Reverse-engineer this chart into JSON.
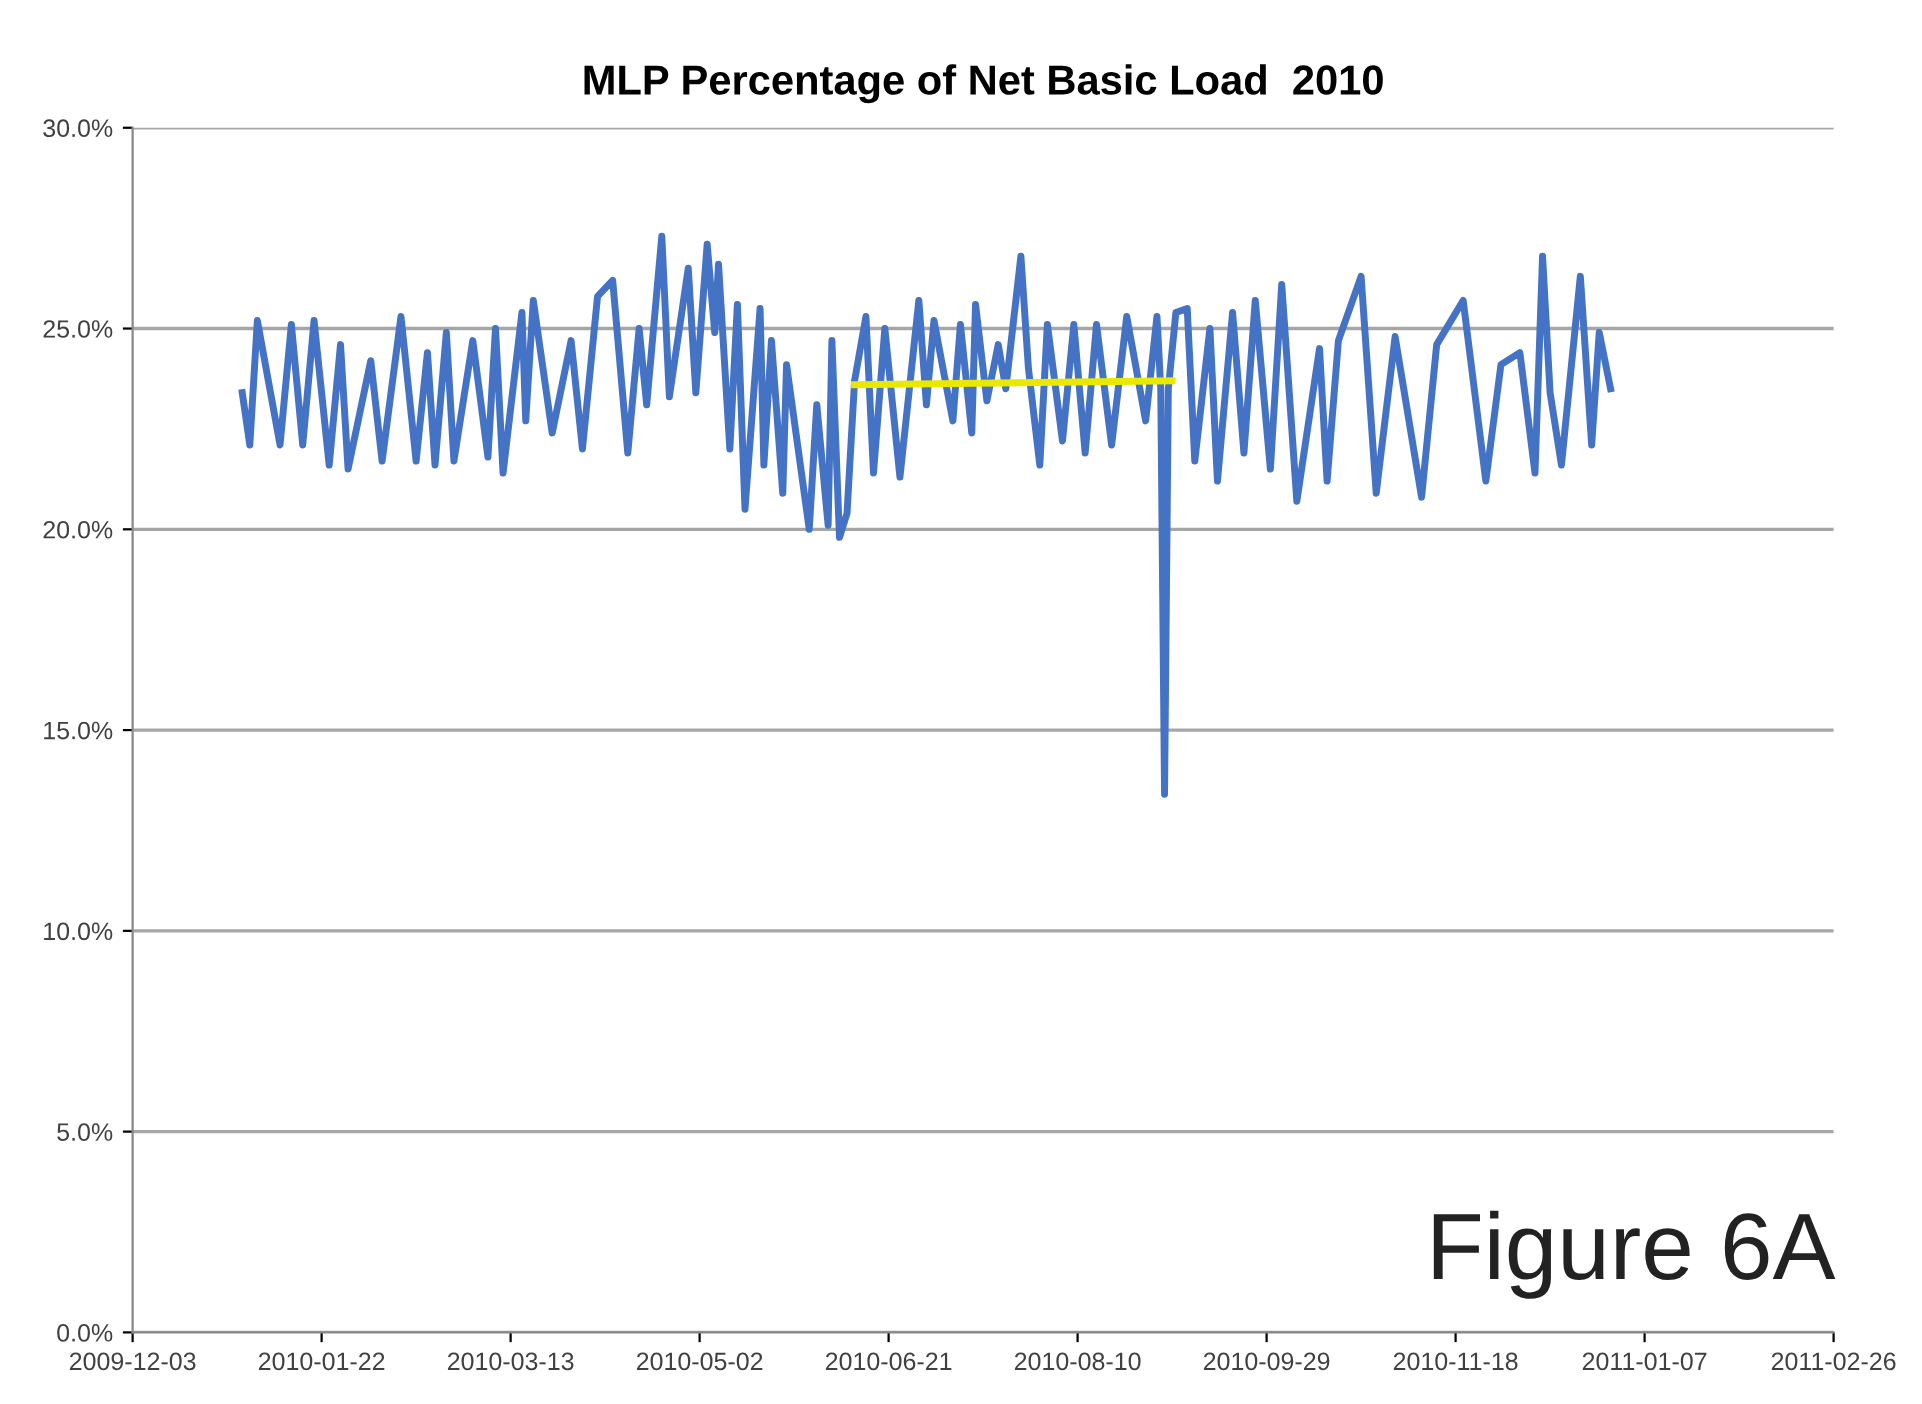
{
  "chart_data": {
    "type": "line",
    "title": "MLP Percentage of Net Basic Load  2010",
    "xlim": [
      "2009-12-03",
      "2011-02-26"
    ],
    "xticks": [
      "2009-12-03",
      "2010-01-22",
      "2010-03-13",
      "2010-05-02",
      "2010-06-21",
      "2010-08-10",
      "2010-09-29",
      "2010-11-18",
      "2011-01-07",
      "2011-02-26"
    ],
    "ylim": [
      0,
      30
    ],
    "yticks": [
      {
        "value": 0,
        "label": "0.0%"
      },
      {
        "value": 5,
        "label": "5.0%"
      },
      {
        "value": 10,
        "label": "10.0%"
      },
      {
        "value": 15,
        "label": "15.0%"
      },
      {
        "value": 20,
        "label": "20.0%"
      },
      {
        "value": 25,
        "label": "25.0%"
      },
      {
        "value": 30,
        "label": "30.0%"
      }
    ],
    "grid": "y",
    "marker": "none",
    "line_style": "solid",
    "annotations": [
      "Figure 6A"
    ],
    "series": [
      {
        "color": "#4472c4",
        "x": [
          "2010-01-01",
          "2010-01-03",
          "2010-01-05",
          "2010-01-11",
          "2010-01-14",
          "2010-01-17",
          "2010-01-20",
          "2010-01-24",
          "2010-01-27",
          "2010-01-29",
          "2010-02-04",
          "2010-02-07",
          "2010-02-12",
          "2010-02-16",
          "2010-02-19",
          "2010-02-21",
          "2010-02-24",
          "2010-02-26",
          "2010-03-03",
          "2010-03-07",
          "2010-03-09",
          "2010-03-11",
          "2010-03-16",
          "2010-03-17",
          "2010-03-19",
          "2010-03-24",
          "2010-03-29",
          "2010-04-01",
          "2010-04-05",
          "2010-04-09",
          "2010-04-13",
          "2010-04-16",
          "2010-04-18",
          "2010-04-22",
          "2010-04-24",
          "2010-04-29",
          "2010-05-01",
          "2010-05-04",
          "2010-05-06",
          "2010-05-07",
          "2010-05-10",
          "2010-05-12",
          "2010-05-14",
          "2010-05-18",
          "2010-05-19",
          "2010-05-21",
          "2010-05-24",
          "2010-05-25",
          "2010-05-31",
          "2010-06-02",
          "2010-06-05",
          "2010-06-06",
          "2010-06-08",
          "2010-06-10",
          "2010-06-12",
          "2010-06-15",
          "2010-06-17",
          "2010-06-20",
          "2010-06-24",
          "2010-06-29",
          "2010-07-01",
          "2010-07-03",
          "2010-07-08",
          "2010-07-10",
          "2010-07-13",
          "2010-07-14",
          "2010-07-17",
          "2010-07-20",
          "2010-07-22",
          "2010-07-26",
          "2010-07-28",
          "2010-07-31",
          "2010-08-02",
          "2010-08-06",
          "2010-08-09",
          "2010-08-12",
          "2010-08-15",
          "2010-08-19",
          "2010-08-23",
          "2010-08-28",
          "2010-08-31",
          "2010-09-01",
          "2010-09-02",
          "2010-09-03",
          "2010-09-05",
          "2010-09-08",
          "2010-09-10",
          "2010-09-14",
          "2010-09-16",
          "2010-09-20",
          "2010-09-23",
          "2010-09-26",
          "2010-09-30",
          "2010-10-03",
          "2010-10-07",
          "2010-10-13",
          "2010-10-15",
          "2010-10-18",
          "2010-10-24",
          "2010-10-28",
          "2010-11-02",
          "2010-11-09",
          "2010-11-13",
          "2010-11-20",
          "2010-11-26",
          "2010-11-30",
          "2010-12-05",
          "2010-12-09",
          "2010-12-11",
          "2010-12-13",
          "2010-12-16",
          "2010-12-21",
          "2010-12-24",
          "2010-12-26",
          "2010-12-29"
        ],
        "values": [
          23.4,
          22.1,
          25.2,
          22.1,
          25.1,
          22.1,
          25.2,
          21.6,
          24.6,
          21.5,
          24.2,
          21.7,
          25.3,
          21.7,
          24.4,
          21.6,
          24.9,
          21.7,
          24.7,
          21.8,
          25.0,
          21.4,
          25.4,
          22.7,
          25.7,
          22.4,
          24.7,
          22.0,
          25.8,
          26.2,
          21.9,
          25.0,
          23.1,
          27.3,
          23.3,
          26.5,
          23.4,
          27.1,
          24.9,
          26.6,
          22.0,
          25.6,
          20.5,
          25.5,
          21.6,
          24.7,
          20.9,
          24.1,
          20.0,
          23.1,
          20.1,
          24.7,
          19.8,
          20.4,
          23.7,
          25.3,
          21.4,
          25.0,
          21.3,
          25.7,
          23.1,
          25.2,
          22.7,
          25.1,
          22.4,
          25.6,
          23.2,
          24.6,
          23.5,
          26.8,
          24.0,
          21.6,
          25.1,
          22.2,
          25.1,
          21.9,
          25.1,
          22.1,
          25.3,
          22.7,
          25.3,
          23.5,
          13.4,
          23.5,
          25.4,
          25.5,
          21.7,
          25.0,
          21.2,
          25.4,
          21.9,
          25.7,
          21.5,
          26.1,
          20.7,
          24.5,
          21.2,
          24.7,
          26.3,
          20.9,
          24.8,
          20.8,
          24.6,
          25.7,
          21.2,
          24.1,
          24.4,
          21.4,
          26.8,
          23.4,
          21.6,
          26.3,
          22.1,
          24.9,
          23.5
        ]
      },
      {
        "color": "#e8e800",
        "x": [
          "2010-06-12",
          "2010-09-04"
        ],
        "values": [
          23.6,
          23.7
        ]
      }
    ]
  }
}
